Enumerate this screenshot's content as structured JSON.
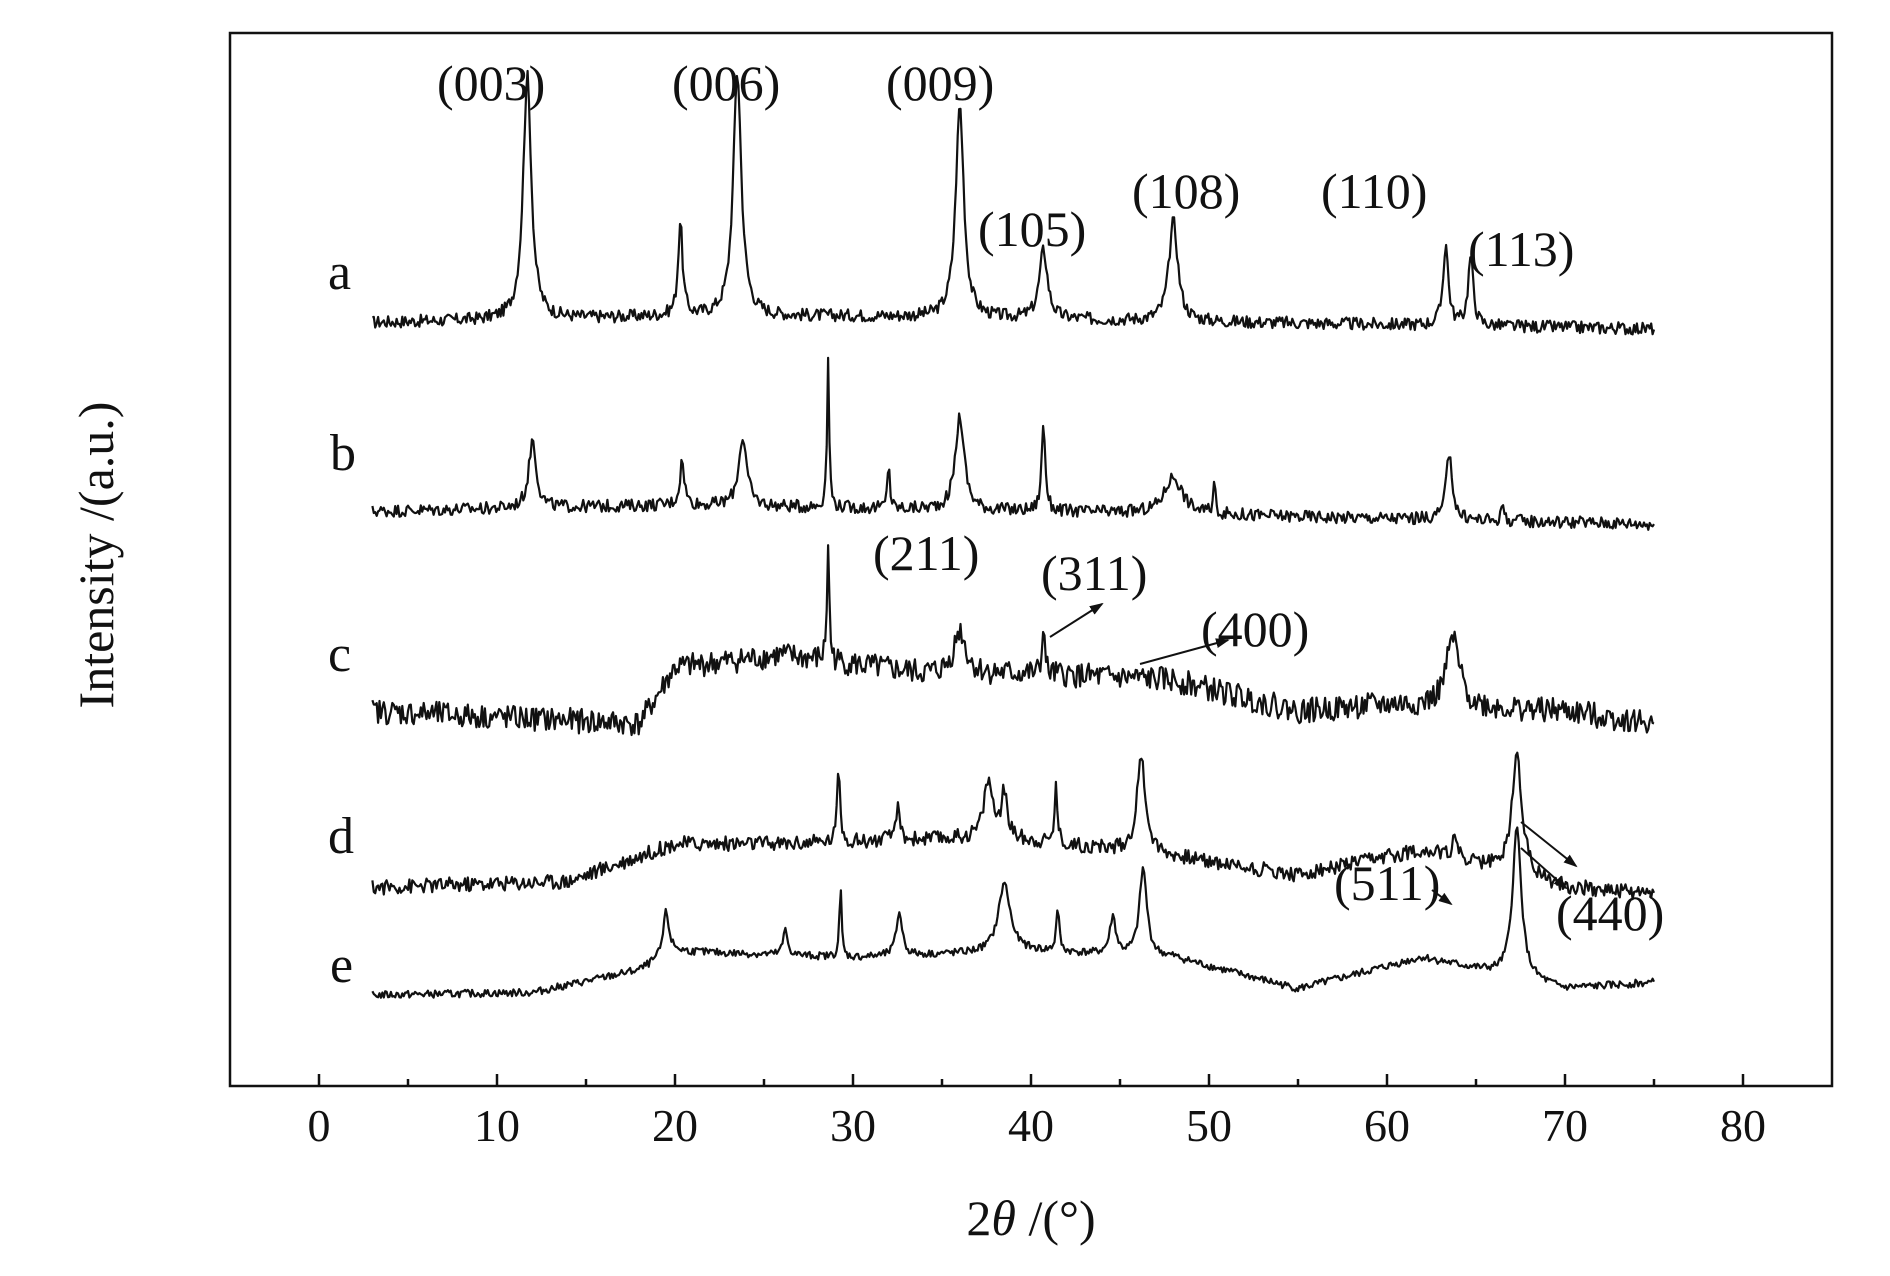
{
  "chart_data": {
    "type": "line",
    "xlabel_main": "2",
    "xlabel_theta": "θ",
    "xlabel_unit": " /(°)",
    "ylabel": "Intensity /(a.u.)",
    "xlim": [
      -5,
      85
    ],
    "x_ticks": [
      0,
      10,
      20,
      30,
      40,
      50,
      60,
      70,
      80
    ],
    "x_tick_labels": [
      "0",
      "10",
      "20",
      "30",
      "40",
      "50",
      "60",
      "70",
      "80"
    ],
    "y_ticks_shown": false,
    "x_range_measured": [
      3,
      75
    ],
    "series": [
      {
        "name": "a",
        "offset": 4,
        "peaks": [
          {
            "x": 11.7,
            "h": 1.95,
            "w": 0.55
          },
          {
            "x": 20.3,
            "h": 0.75,
            "w": 0.3
          },
          {
            "x": 23.5,
            "h": 1.95,
            "w": 0.55
          },
          {
            "x": 36.0,
            "h": 1.7,
            "w": 0.55
          },
          {
            "x": 40.7,
            "h": 0.55,
            "w": 0.55
          },
          {
            "x": 48.0,
            "h": 0.8,
            "w": 0.6
          },
          {
            "x": 63.3,
            "h": 0.65,
            "w": 0.35
          },
          {
            "x": 64.7,
            "h": 0.55,
            "w": 0.35
          }
        ],
        "background": [
          {
            "x": 3,
            "y": 0.1
          },
          {
            "x": 20,
            "y": 0.15
          },
          {
            "x": 30,
            "y": 0.15
          },
          {
            "x": 75,
            "y": 0.05
          }
        ],
        "noise": 0.05
      },
      {
        "name": "b",
        "offset": 3,
        "peaks": [
          {
            "x": 12.0,
            "h": 0.55,
            "w": 0.5
          },
          {
            "x": 20.4,
            "h": 0.35,
            "w": 0.3
          },
          {
            "x": 23.8,
            "h": 0.55,
            "w": 0.55
          },
          {
            "x": 28.6,
            "h": 1.15,
            "w": 0.15
          },
          {
            "x": 32.0,
            "h": 0.4,
            "w": 0.15
          },
          {
            "x": 36.0,
            "h": 0.75,
            "w": 0.6
          },
          {
            "x": 40.7,
            "h": 0.7,
            "w": 0.25
          },
          {
            "x": 48.0,
            "h": 0.3,
            "w": 1.2
          },
          {
            "x": 50.3,
            "h": 0.25,
            "w": 0.15
          },
          {
            "x": 63.5,
            "h": 0.55,
            "w": 0.4
          },
          {
            "x": 66.5,
            "h": 0.15,
            "w": 0.15
          }
        ],
        "background": [
          {
            "x": 3,
            "y": 0.15
          },
          {
            "x": 20,
            "y": 0.2
          },
          {
            "x": 40,
            "y": 0.15
          },
          {
            "x": 75,
            "y": 0.05
          }
        ],
        "noise": 0.05
      },
      {
        "name": "c",
        "offset": 2,
        "peaks": [
          {
            "x": 28.6,
            "h": 0.95,
            "w": 0.15
          },
          {
            "x": 36.0,
            "h": 0.35,
            "w": 0.8
          },
          {
            "x": 40.7,
            "h": 0.45,
            "w": 0.15
          },
          {
            "x": 63.7,
            "h": 0.55,
            "w": 0.9
          }
        ],
        "background": [
          {
            "x": 3,
            "y": 0.15
          },
          {
            "x": 18,
            "y": 0.05
          },
          {
            "x": 20,
            "y": 0.5
          },
          {
            "x": 26,
            "y": 0.6
          },
          {
            "x": 34,
            "y": 0.45
          },
          {
            "x": 40,
            "y": 0.45
          },
          {
            "x": 48,
            "y": 0.4
          },
          {
            "x": 55,
            "y": 0.15
          },
          {
            "x": 60,
            "y": 0.2
          },
          {
            "x": 70,
            "y": 0.15
          },
          {
            "x": 75,
            "y": 0.05
          }
        ],
        "noise": 0.1
      },
      {
        "name": "d",
        "offset": 1,
        "peaks": [
          {
            "x": 29.2,
            "h": 0.6,
            "w": 0.2
          },
          {
            "x": 32.5,
            "h": 0.25,
            "w": 0.3
          },
          {
            "x": 37.6,
            "h": 0.45,
            "w": 0.6
          },
          {
            "x": 38.5,
            "h": 0.35,
            "w": 0.4
          },
          {
            "x": 41.4,
            "h": 0.45,
            "w": 0.2
          },
          {
            "x": 46.2,
            "h": 0.75,
            "w": 0.6
          },
          {
            "x": 63.8,
            "h": 0.2,
            "w": 0.3
          },
          {
            "x": 67.3,
            "h": 0.95,
            "w": 0.7
          }
        ],
        "background": [
          {
            "x": 3,
            "y": 0.1
          },
          {
            "x": 14,
            "y": 0.15
          },
          {
            "x": 20,
            "y": 0.45
          },
          {
            "x": 26,
            "y": 0.45
          },
          {
            "x": 38,
            "y": 0.5
          },
          {
            "x": 48,
            "y": 0.35
          },
          {
            "x": 55,
            "y": 0.2
          },
          {
            "x": 62,
            "y": 0.4
          },
          {
            "x": 70,
            "y": 0.1
          },
          {
            "x": 75,
            "y": 0.05
          }
        ],
        "noise": 0.06
      },
      {
        "name": "e",
        "offset": 0,
        "peaks": [
          {
            "x": 19.5,
            "h": 0.35,
            "w": 0.4
          },
          {
            "x": 26.2,
            "h": 0.2,
            "w": 0.3
          },
          {
            "x": 29.3,
            "h": 0.55,
            "w": 0.15
          },
          {
            "x": 32.6,
            "h": 0.35,
            "w": 0.4
          },
          {
            "x": 38.5,
            "h": 0.55,
            "w": 0.8
          },
          {
            "x": 41.5,
            "h": 0.35,
            "w": 0.2
          },
          {
            "x": 44.6,
            "h": 0.3,
            "w": 0.4
          },
          {
            "x": 46.3,
            "h": 0.7,
            "w": 0.5
          },
          {
            "x": 67.3,
            "h": 1.2,
            "w": 0.6
          }
        ],
        "background": [
          {
            "x": 3,
            "y": 0.0
          },
          {
            "x": 12,
            "y": 0.02
          },
          {
            "x": 18,
            "y": 0.2
          },
          {
            "x": 20,
            "y": 0.35
          },
          {
            "x": 30,
            "y": 0.3
          },
          {
            "x": 40,
            "y": 0.35
          },
          {
            "x": 48,
            "y": 0.3
          },
          {
            "x": 55,
            "y": 0.05
          },
          {
            "x": 62,
            "y": 0.3
          },
          {
            "x": 70,
            "y": 0.05
          },
          {
            "x": 75,
            "y": 0.1
          }
        ],
        "noise": 0.03
      }
    ],
    "annotations": [
      {
        "text": "(003)",
        "series": "a",
        "x": 11.7
      },
      {
        "text": "(006)",
        "series": "a",
        "x": 23.5
      },
      {
        "text": "(009)",
        "series": "a",
        "x": 36.0
      },
      {
        "text": "(105)",
        "series": "a",
        "x": 40.7
      },
      {
        "text": "(108)",
        "series": "a",
        "x": 48.0
      },
      {
        "text": "(110)",
        "series": "a",
        "x": 63.3
      },
      {
        "text": "(113)",
        "series": "a",
        "x": 64.7
      },
      {
        "text": "(211)",
        "series": "c",
        "x": 36.0
      },
      {
        "text": "(311)",
        "series": "c",
        "x": 40.7
      },
      {
        "text": "(400)",
        "series": "c",
        "x": 46.0
      },
      {
        "text": "(511)",
        "series": "e",
        "x": 63.8
      },
      {
        "text": "(440)",
        "series": "e",
        "x": 67.3
      }
    ]
  }
}
